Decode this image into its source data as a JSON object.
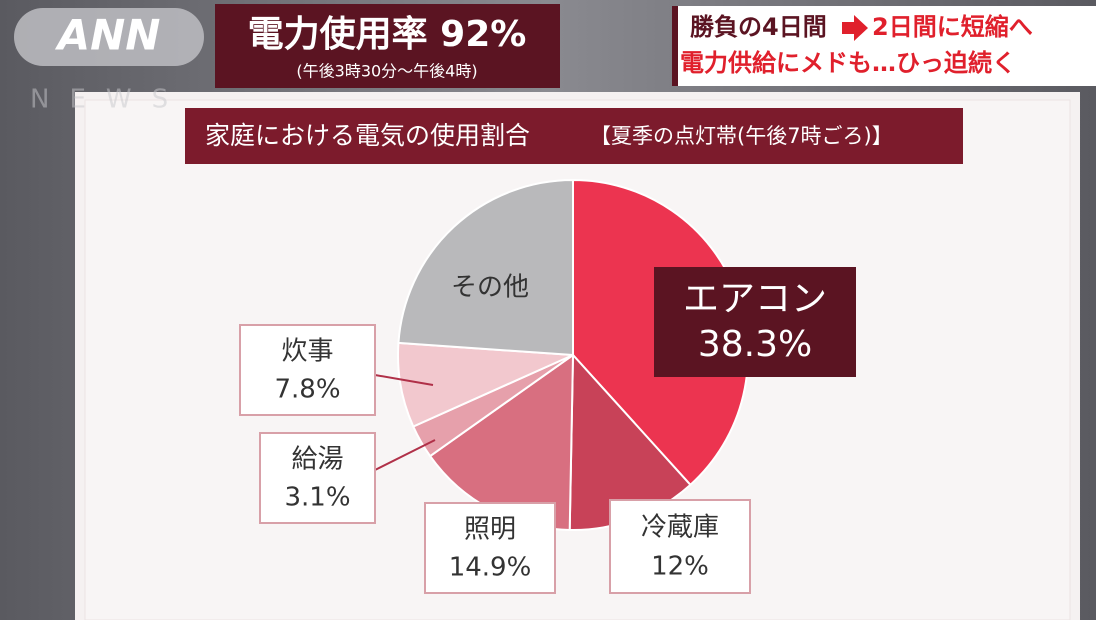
{
  "overlay": {
    "logo": "ANN",
    "logo_sub": "NEWS",
    "headline": "電力使用率 92%",
    "headline_note": "(午後3時30分～午後4時)",
    "topic_line1_a": "勝負の4日間",
    "topic_line1_b": "2日間に短縮へ",
    "topic_line2": "電力供給にメドも…ひっ迫続く"
  },
  "chart_data": {
    "type": "pie",
    "title": "家庭における電気の使用割合",
    "subtitle": "【夏季の点灯帯(午後7時ごろ)】",
    "categories": [
      "エアコン",
      "冷蔵庫",
      "照明",
      "給湯",
      "炊事",
      "その他"
    ],
    "values": [
      38.3,
      12,
      14.9,
      3.1,
      7.8,
      23.9
    ],
    "value_labels": [
      "38.3%",
      "12%",
      "14.9%",
      "3.1%",
      "7.8%",
      null
    ],
    "colors": [
      "#ec3450",
      "#c84258",
      "#d86f80",
      "#e6a0ab",
      "#f2c8ce",
      "#b9b9bb"
    ]
  }
}
